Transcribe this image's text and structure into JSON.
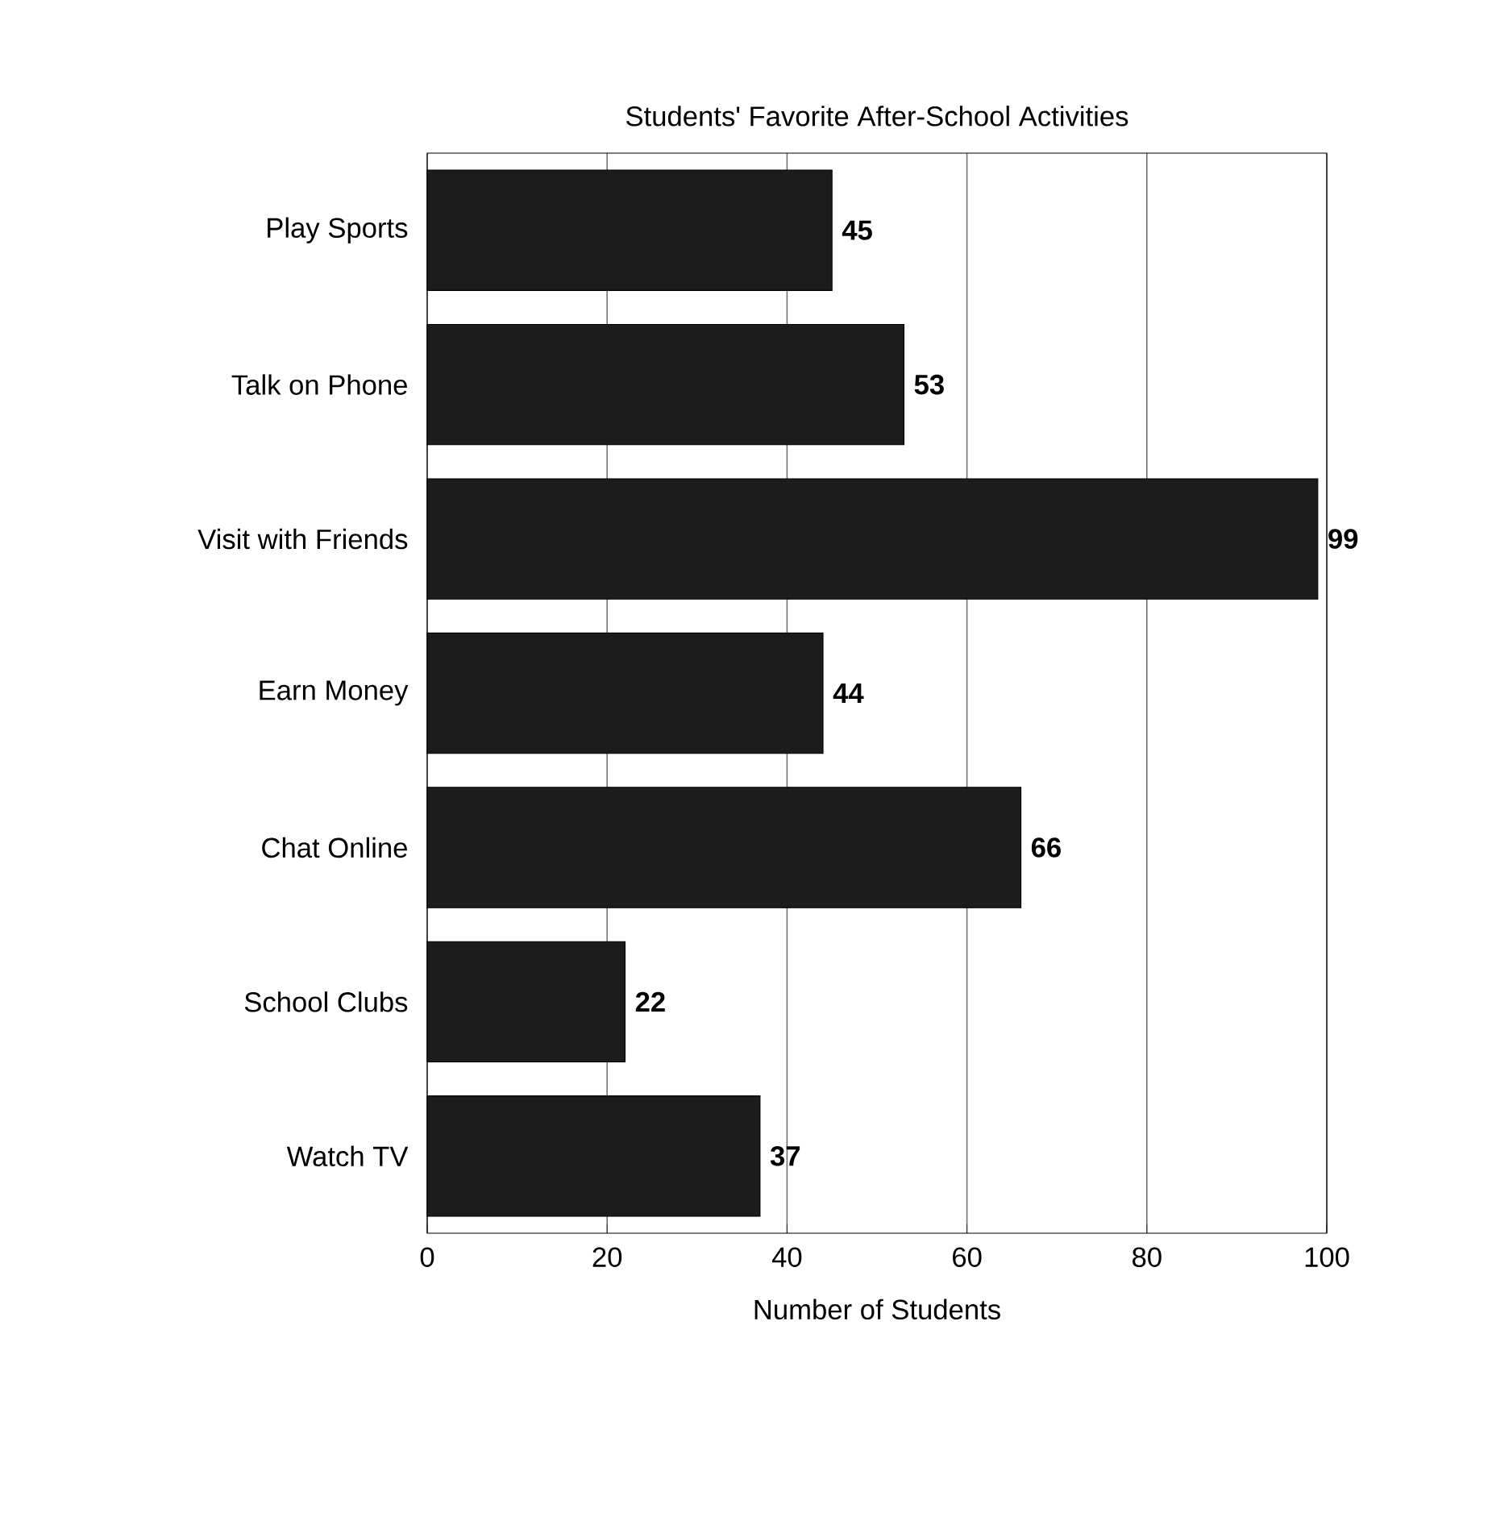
{
  "chart_data": {
    "type": "bar",
    "orientation": "horizontal",
    "title": "Students' Favorite After-School Activities",
    "xlabel": "Number of Students",
    "categories": [
      "Play Sports",
      "Talk on Phone",
      "Visit with Friends",
      "Earn Money",
      "Chat Online",
      "School Clubs",
      "Watch TV"
    ],
    "values": [
      45,
      53,
      99,
      44,
      66,
      22,
      37
    ],
    "color": "#1c1c1c",
    "xlim": [
      0,
      100
    ],
    "xticks": [
      0,
      20,
      40,
      60,
      80,
      100
    ],
    "grid": "x",
    "data_labels": true
  }
}
